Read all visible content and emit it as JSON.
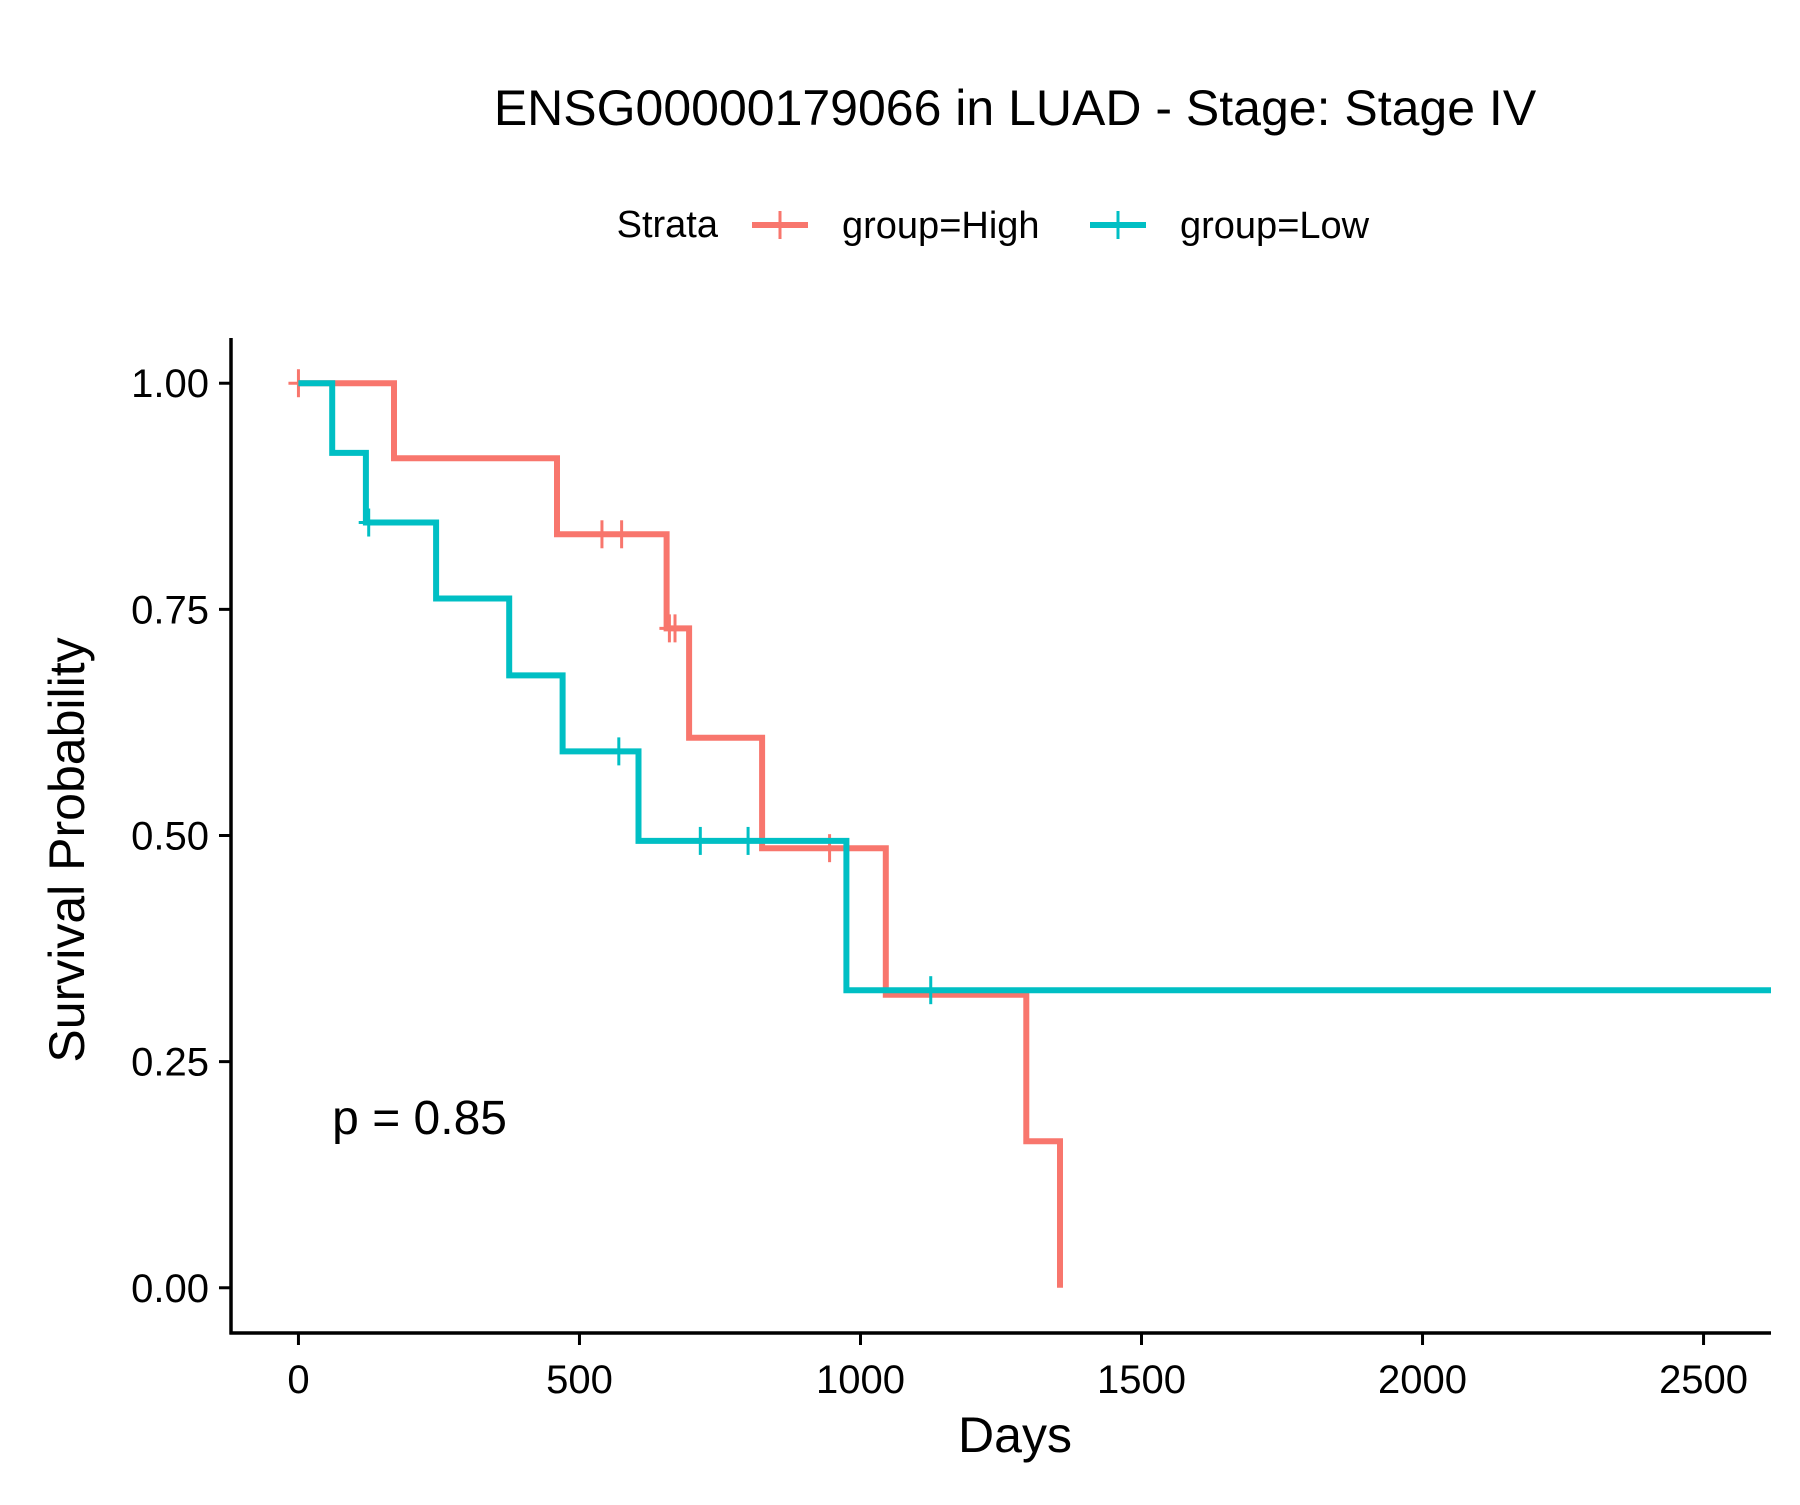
{
  "chart_data": {
    "type": "line",
    "title": "ENSG00000179066 in LUAD - Stage: Stage IV",
    "xlabel": "Days",
    "ylabel": "Survival Probability",
    "xlim": [
      -120,
      2620
    ],
    "ylim": [
      -0.05,
      1.05
    ],
    "x_ticks": [
      0,
      500,
      1000,
      1500,
      2000,
      2500
    ],
    "y_ticks": [
      0,
      0.25,
      0.5,
      0.75,
      1.0
    ],
    "x_tick_labels": [
      "0",
      "500",
      "1000",
      "1500",
      "2000",
      "2500"
    ],
    "y_tick_labels": [
      "0.00",
      "0.25",
      "0.50",
      "0.75",
      "1.00"
    ],
    "grid": false,
    "legend": {
      "title": "Strata",
      "position": "top",
      "entries": [
        "group=High",
        "group=Low"
      ]
    },
    "annotations": [
      {
        "text": "p = 0.85",
        "x": 60,
        "y": 0.19
      }
    ],
    "series": [
      {
        "name": "group=High",
        "color": "#F8766D",
        "step_points": [
          [
            0,
            1.0
          ],
          [
            170,
            1.0
          ],
          [
            170,
            0.917
          ],
          [
            460,
            0.917
          ],
          [
            460,
            0.833
          ],
          [
            655,
            0.833
          ],
          [
            655,
            0.729
          ],
          [
            695,
            0.729
          ],
          [
            695,
            0.608
          ],
          [
            825,
            0.608
          ],
          [
            825,
            0.486
          ],
          [
            1045,
            0.486
          ],
          [
            1045,
            0.324
          ],
          [
            1295,
            0.324
          ],
          [
            1295,
            0.162
          ],
          [
            1355,
            0.162
          ],
          [
            1355,
            0.0
          ]
        ],
        "censor_points": [
          [
            0,
            1.0
          ],
          [
            540,
            0.833
          ],
          [
            575,
            0.833
          ],
          [
            660,
            0.729
          ],
          [
            670,
            0.729
          ],
          [
            945,
            0.486
          ]
        ]
      },
      {
        "name": "group=Low",
        "color": "#00BFC4",
        "step_points": [
          [
            0,
            1.0
          ],
          [
            60,
            1.0
          ],
          [
            60,
            0.923
          ],
          [
            120,
            0.923
          ],
          [
            120,
            0.846
          ],
          [
            245,
            0.846
          ],
          [
            245,
            0.762
          ],
          [
            375,
            0.762
          ],
          [
            375,
            0.677
          ],
          [
            470,
            0.677
          ],
          [
            470,
            0.593
          ],
          [
            605,
            0.593
          ],
          [
            605,
            0.494
          ],
          [
            975,
            0.494
          ],
          [
            975,
            0.329
          ],
          [
            2620,
            0.329
          ]
        ],
        "censor_points": [
          [
            125,
            0.846
          ],
          [
            570,
            0.593
          ],
          [
            715,
            0.494
          ],
          [
            800,
            0.494
          ],
          [
            1125,
            0.329
          ]
        ]
      }
    ]
  }
}
